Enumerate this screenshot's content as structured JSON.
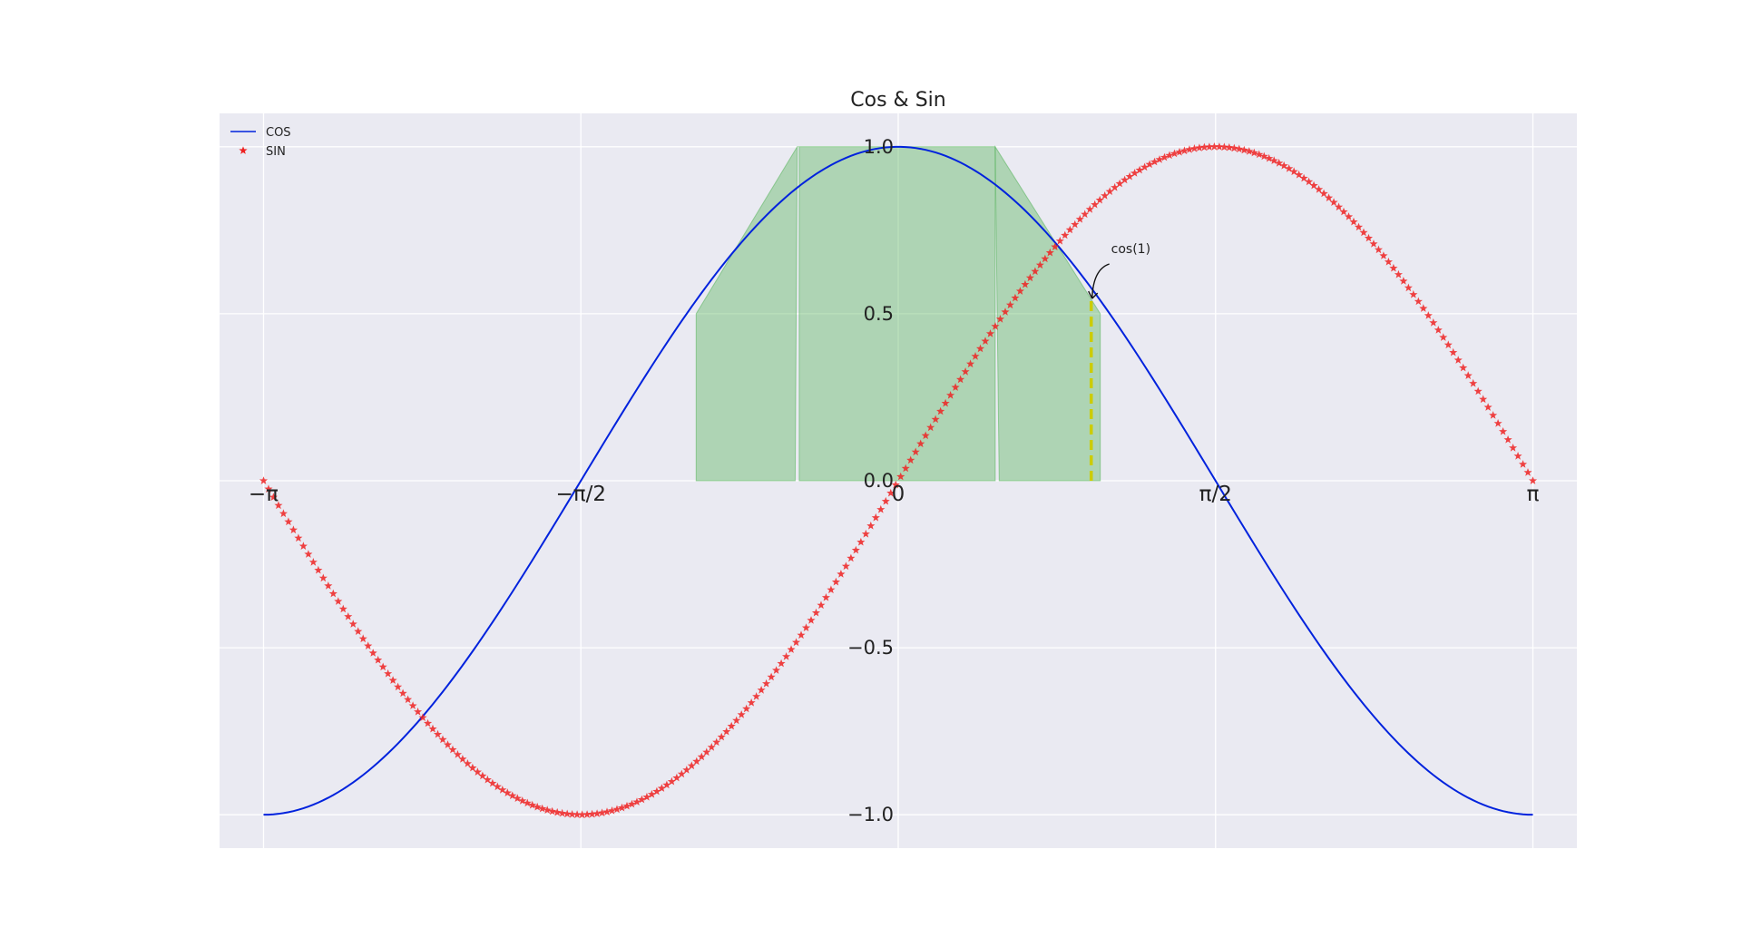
{
  "chart_data": {
    "type": "line",
    "title": "Cos & Sin",
    "xlabel": "",
    "ylabel": "",
    "xlim": [
      -3.3593,
      3.3593
    ],
    "ylim": [
      -1.1,
      1.1
    ],
    "grid": true,
    "legend_position": "top-left",
    "xticks": [
      {
        "value": -3.14159,
        "label": "−π"
      },
      {
        "value": -1.5708,
        "label": "−π/2"
      },
      {
        "value": 0,
        "label": "0"
      },
      {
        "value": 1.5708,
        "label": "π/2"
      },
      {
        "value": 3.14159,
        "label": "π"
      }
    ],
    "yticks": [
      {
        "value": 1.0,
        "label": "1.0"
      },
      {
        "value": 0.5,
        "label": "0.5"
      },
      {
        "value": 0.0,
        "label": "0.0"
      },
      {
        "value": -0.5,
        "label": "−0.5"
      },
      {
        "value": -1.0,
        "label": "−1.0"
      }
    ],
    "x": {
      "start": -3.14159,
      "end": 3.14159,
      "num_points": 256
    },
    "series": [
      {
        "name": "COS",
        "function": "cos",
        "style": "line",
        "color": "#0022dd"
      },
      {
        "name": "SIN",
        "function": "sin",
        "style": "star-markers",
        "color": "#ee2222"
      }
    ],
    "fill_between": {
      "color": "#4caf50",
      "opacity": 0.38,
      "regions": [
        {
          "x_start": -1.0,
          "x_end": -0.5,
          "y_low": 0.0,
          "y_high": 0.5
        },
        {
          "x_start": -0.5,
          "x_end": -0.48,
          "y_low": 0.0,
          "y_high": 1.0
        },
        {
          "x_start": -0.48,
          "x_end": -0.47,
          "y_low": 1.0,
          "y_high": 1.0
        },
        {
          "x_start": 0.48,
          "x_end": 1.0,
          "y_low": 0.0,
          "y_high": 1.0
        }
      ],
      "polygons": [
        [
          [
            -1.0,
            0.0
          ],
          [
            -1.0,
            0.5
          ],
          [
            -0.5,
            1.0
          ],
          [
            0.48,
            1.0
          ],
          [
            0.48,
            0.0
          ],
          [
            -0.49,
            0.0
          ],
          [
            -0.49,
            1.0
          ],
          [
            -0.5,
            1.0
          ],
          [
            -0.51,
            0.0
          ]
        ],
        [
          [
            0.48,
            1.0
          ],
          [
            1.0,
            0.5
          ],
          [
            1.0,
            0.0
          ],
          [
            0.5,
            0.0
          ]
        ]
      ]
    },
    "vline": {
      "x": 0.9553,
      "y_start": 0.0,
      "y_end": 0.5403,
      "color": "#cccc00",
      "style": "dashed"
    },
    "annotation": {
      "text": "cos(1)",
      "point": [
        0.9553,
        0.5403
      ],
      "text_position": [
        1.0,
        0.66
      ]
    }
  }
}
